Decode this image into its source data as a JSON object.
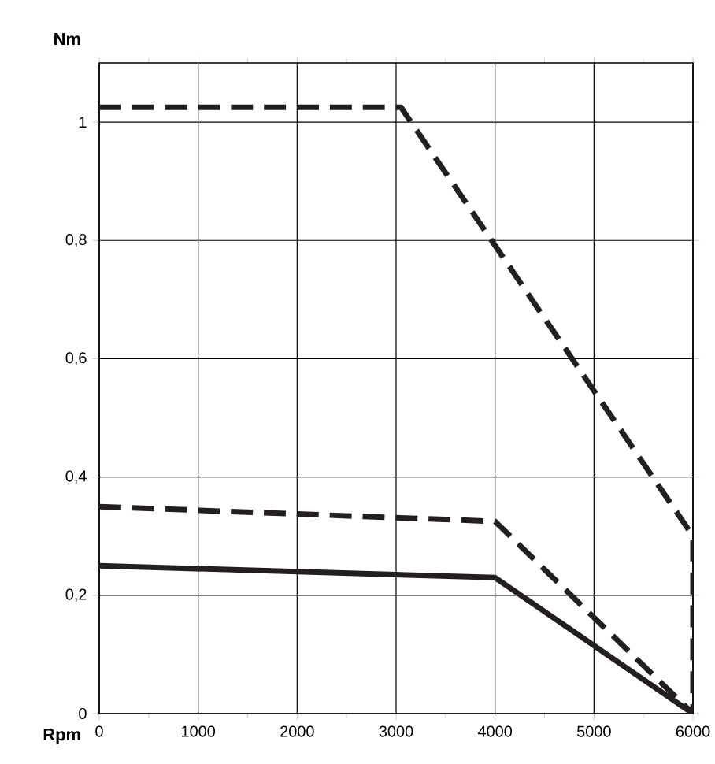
{
  "chart_data": {
    "type": "line",
    "xlabel": "Rpm",
    "ylabel": "Nm",
    "xlim": [
      0,
      6000
    ],
    "ylim": [
      0,
      1.1
    ],
    "xticks": [
      0,
      1000,
      2000,
      3000,
      4000,
      5000,
      6000
    ],
    "yticks": [
      {
        "value": 0,
        "label": "0"
      },
      {
        "value": 0.2,
        "label": "0,2"
      },
      {
        "value": 0.4,
        "label": "0,4"
      },
      {
        "value": 0.6,
        "label": "0,6"
      },
      {
        "value": 0.8,
        "label": "0,8"
      },
      {
        "value": 1,
        "label": "1"
      }
    ],
    "grid": true,
    "series": [
      {
        "color": "#231f20",
        "line_style": "dashed",
        "x": [
          0,
          3050,
          6000,
          6000
        ],
        "values": [
          1.025,
          1.025,
          0.3,
          0
        ]
      },
      {
        "color": "#231f20",
        "line_style": "dashed",
        "x": [
          0,
          4000,
          6000
        ],
        "values": [
          0.35,
          0.325,
          0
        ]
      },
      {
        "color": "#231f20",
        "line_style": "solid",
        "x": [
          0,
          4000,
          6000
        ],
        "values": [
          0.25,
          0.23,
          0
        ]
      }
    ]
  }
}
